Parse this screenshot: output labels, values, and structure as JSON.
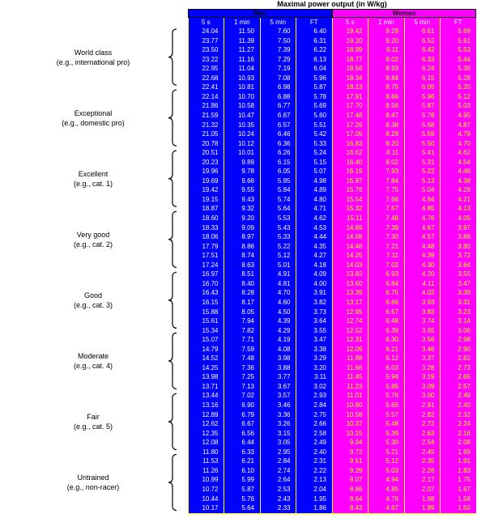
{
  "title": "Maximal power output (in W/kg)",
  "groups": {
    "men": "Men",
    "women": "Women"
  },
  "columns": [
    "5 s",
    "1 min",
    "5 min",
    "FT"
  ],
  "colors": {
    "men_bg": "#0000ff",
    "women_bg": "#ff00ff",
    "grid": "#ffff00",
    "men_text": "#ffffff",
    "women_text": "#ffff00"
  },
  "categories": [
    {
      "name": "World class",
      "example": "(e.g., international pro)"
    },
    {
      "name": "Exceptional",
      "example": "(e.g., domestic pro)"
    },
    {
      "name": "Excellent",
      "example": "(e.g., cat. 1)"
    },
    {
      "name": "Very good",
      "example": "(e.g., cat. 2)"
    },
    {
      "name": "Good",
      "example": "(e.g., cat. 3)"
    },
    {
      "name": "Moderate",
      "example": "(e.g., cat. 4)"
    },
    {
      "name": "Fair",
      "example": "(e.g., cat. 5)"
    },
    {
      "name": "Untrained",
      "example": "(e.g., non-racer)"
    }
  ],
  "men": [
    [
      "24.04",
      "11.50",
      "7.60",
      "6.40"
    ],
    [
      "23.77",
      "11.39",
      "7.50",
      "6.31"
    ],
    [
      "23.50",
      "11.27",
      "7.39",
      "6.22"
    ],
    [
      "23.22",
      "11.16",
      "7.29",
      "6.13"
    ],
    [
      "22.95",
      "11.04",
      "7.19",
      "6.04"
    ],
    [
      "22.68",
      "10.93",
      "7.08",
      "5.96"
    ],
    [
      "22.41",
      "10.81",
      "6.98",
      "5.87"
    ],
    [
      "22.14",
      "10.70",
      "6.88",
      "5.78"
    ],
    [
      "21.86",
      "10.58",
      "6.77",
      "5.69"
    ],
    [
      "21.59",
      "10.47",
      "6.67",
      "5.60"
    ],
    [
      "21.32",
      "10.35",
      "6.57",
      "5.51"
    ],
    [
      "21.05",
      "10.24",
      "6.46",
      "5.42"
    ],
    [
      "20.78",
      "10.12",
      "6.36",
      "5.33"
    ],
    [
      "20.51",
      "10.01",
      "6.26",
      "5.24"
    ],
    [
      "20.23",
      "9.89",
      "6.15",
      "5.15"
    ],
    [
      "19.96",
      "9.78",
      "6.05",
      "5.07"
    ],
    [
      "19.69",
      "9.66",
      "5.95",
      "4.98"
    ],
    [
      "19.42",
      "9.55",
      "5.84",
      "4.89"
    ],
    [
      "19.15",
      "9.43",
      "5.74",
      "4.80"
    ],
    [
      "18.87",
      "9.32",
      "5.64",
      "4.71"
    ],
    [
      "18.60",
      "9.20",
      "5.53",
      "4.62"
    ],
    [
      "18.33",
      "9.09",
      "5.43",
      "4.53"
    ],
    [
      "18.06",
      "8.97",
      "5.33",
      "4.44"
    ],
    [
      "17.79",
      "8.86",
      "5.22",
      "4.35"
    ],
    [
      "17.51",
      "8.74",
      "5.12",
      "4.27"
    ],
    [
      "17.24",
      "8.63",
      "5.01",
      "4.18"
    ],
    [
      "16.97",
      "8.51",
      "4.91",
      "4.09"
    ],
    [
      "16.70",
      "8.40",
      "4.81",
      "4.00"
    ],
    [
      "16.43",
      "8.28",
      "4.70",
      "3.91"
    ],
    [
      "16.15",
      "8.17",
      "4.60",
      "3.82"
    ],
    [
      "15.88",
      "8.05",
      "4.50",
      "3.73"
    ],
    [
      "15.61",
      "7.94",
      "4.39",
      "3.64"
    ],
    [
      "15.34",
      "7.82",
      "4.29",
      "3.55"
    ],
    [
      "15.07",
      "7.71",
      "4.19",
      "3.47"
    ],
    [
      "14.79",
      "7.59",
      "4.08",
      "3.38"
    ],
    [
      "14.52",
      "7.48",
      "3.98",
      "3.29"
    ],
    [
      "14.25",
      "7.36",
      "3.88",
      "3.20"
    ],
    [
      "13.98",
      "7.25",
      "3.77",
      "3.11"
    ],
    [
      "13.71",
      "7.13",
      "3.67",
      "3.02"
    ],
    [
      "13.44",
      "7.02",
      "3.57",
      "2.93"
    ],
    [
      "13.16",
      "6.90",
      "3.46",
      "2.84"
    ],
    [
      "12.89",
      "6.79",
      "3.36",
      "2.75"
    ],
    [
      "12.62",
      "6.67",
      "3.26",
      "2.66"
    ],
    [
      "12.35",
      "6.56",
      "3.15",
      "2.58"
    ],
    [
      "12.08",
      "6.44",
      "3.05",
      "2.49"
    ],
    [
      "11.80",
      "6.33",
      "2.95",
      "2.40"
    ],
    [
      "11.53",
      "6.21",
      "2.84",
      "2.31"
    ],
    [
      "11.26",
      "6.10",
      "2.74",
      "2.22"
    ],
    [
      "10.99",
      "5.99",
      "2.64",
      "2.13"
    ],
    [
      "10.72",
      "5.87",
      "2.53",
      "2.04"
    ],
    [
      "10.44",
      "5.76",
      "2.43",
      "1.95"
    ],
    [
      "10.17",
      "5.64",
      "2.33",
      "1.86"
    ]
  ],
  "women": [
    [
      "19.42",
      "9.29",
      "6.61",
      "5.69"
    ],
    [
      "19.20",
      "9.20",
      "6.52",
      "5.61"
    ],
    [
      "18.99",
      "9.11",
      "6.42",
      "5.53"
    ],
    [
      "18.77",
      "9.02",
      "6.33",
      "5.44"
    ],
    [
      "18.56",
      "8.93",
      "6.24",
      "5.36"
    ],
    [
      "18.34",
      "8.84",
      "6.15",
      "5.28"
    ],
    [
      "18.13",
      "8.75",
      "6.05",
      "5.20"
    ],
    [
      "17.91",
      "8.66",
      "5.96",
      "5.12"
    ],
    [
      "17.70",
      "8.56",
      "5.87",
      "5.03"
    ],
    [
      "17.48",
      "8.47",
      "5.78",
      "4.95"
    ],
    [
      "17.26",
      "8.38",
      "5.68",
      "4.87"
    ],
    [
      "17.05",
      "8.29",
      "5.59",
      "4.79"
    ],
    [
      "16.83",
      "8.20",
      "5.50",
      "4.70"
    ],
    [
      "16.62",
      "8.11",
      "5.41",
      "4.62"
    ],
    [
      "16.40",
      "8.02",
      "5.31",
      "4.54"
    ],
    [
      "16.19",
      "7.93",
      "5.22",
      "4.46"
    ],
    [
      "15.97",
      "7.84",
      "5.13",
      "4.38"
    ],
    [
      "15.76",
      "7.75",
      "5.04",
      "4.29"
    ],
    [
      "15.54",
      "7.66",
      "4.94",
      "4.21"
    ],
    [
      "15.32",
      "7.57",
      "4.85",
      "4.13"
    ],
    [
      "15.11",
      "7.48",
      "4.76",
      "4.05"
    ],
    [
      "14.89",
      "7.39",
      "4.67",
      "3.97"
    ],
    [
      "14.68",
      "7.30",
      "4.57",
      "3.88"
    ],
    [
      "14.46",
      "7.21",
      "4.48",
      "3.80"
    ],
    [
      "14.25",
      "7.11",
      "4.39",
      "3.72"
    ],
    [
      "14.03",
      "7.02",
      "4.30",
      "3.64"
    ],
    [
      "13.82",
      "6.93",
      "4.20",
      "3.55"
    ],
    [
      "13.60",
      "6.84",
      "4.11",
      "3.47"
    ],
    [
      "13.39",
      "6.75",
      "4.02",
      "3.39"
    ],
    [
      "13.17",
      "6.66",
      "3.93",
      "3.31"
    ],
    [
      "12.95",
      "6.57",
      "3.83",
      "3.23"
    ],
    [
      "12.74",
      "6.48",
      "3.74",
      "3.14"
    ],
    [
      "12.52",
      "6.39",
      "3.65",
      "3.06"
    ],
    [
      "12.31",
      "6.30",
      "3.56",
      "2.98"
    ],
    [
      "12.09",
      "6.21",
      "3.46",
      "2.90"
    ],
    [
      "11.88",
      "6.12",
      "3.37",
      "2.82"
    ],
    [
      "11.66",
      "6.03",
      "3.28",
      "2.73"
    ],
    [
      "11.45",
      "5.94",
      "3.19",
      "2.65"
    ],
    [
      "11.23",
      "5.85",
      "3.09",
      "2.57"
    ],
    [
      "11.01",
      "5.76",
      "3.00",
      "2.49"
    ],
    [
      "10.80",
      "5.66",
      "2.91",
      "2.40"
    ],
    [
      "10.58",
      "5.57",
      "2.82",
      "2.32"
    ],
    [
      "10.37",
      "5.48",
      "2.72",
      "2.24"
    ],
    [
      "10.15",
      "5.39",
      "2.63",
      "2.16"
    ],
    [
      "9.94",
      "5.30",
      "2.54",
      "2.08"
    ],
    [
      "9.72",
      "5.21",
      "2.45",
      "1.99"
    ],
    [
      "9.51",
      "5.12",
      "2.35",
      "1.91"
    ],
    [
      "9.29",
      "5.03",
      "2.26",
      "1.83"
    ],
    [
      "9.07",
      "4.94",
      "2.17",
      "1.75"
    ],
    [
      "8.86",
      "4.85",
      "2.07",
      "1.67"
    ],
    [
      "8.64",
      "4.76",
      "1.98",
      "1.58"
    ],
    [
      "8.43",
      "4.67",
      "1.89",
      "1.50"
    ]
  ]
}
